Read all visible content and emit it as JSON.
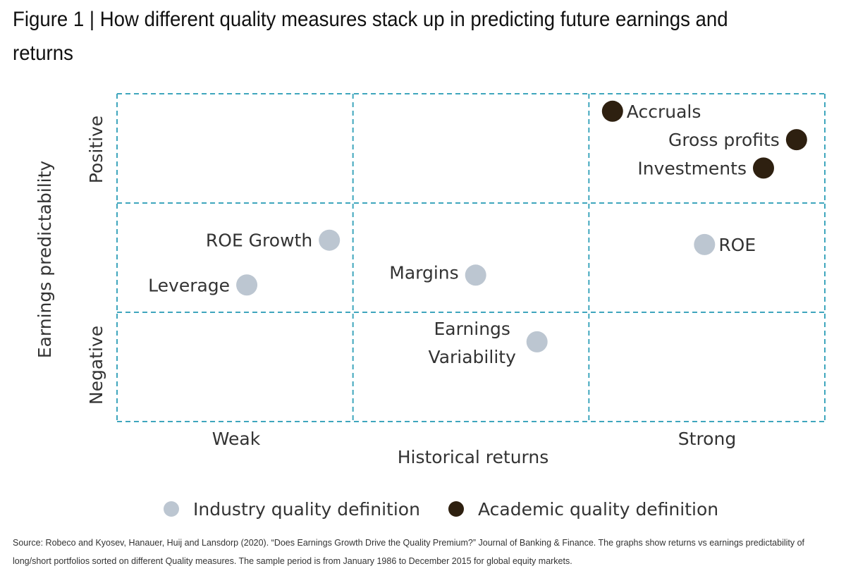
{
  "title": "Figure 1 | How different quality measures stack up in predicting future earnings and returns",
  "colors": {
    "grid": "#3fa6bd",
    "industry": "#bcc6d1",
    "academic": "#2e2010",
    "text": "#333333"
  },
  "chart_data": {
    "type": "scatter",
    "xlabel": "Historical returns",
    "ylabel": "Earnings predictability",
    "x_categories": [
      "Weak",
      "",
      "Strong"
    ],
    "y_categories": [
      "Negative",
      "",
      "Positive"
    ],
    "xlim": [
      0,
      3
    ],
    "ylim": [
      0,
      3
    ],
    "grid": true,
    "legend": "bottom",
    "series": [
      {
        "name": "Industry quality definition",
        "key": "industry",
        "points": [
          {
            "label": "ROE Growth",
            "x": 0.9,
            "y": 1.66
          },
          {
            "label": "Leverage",
            "x": 0.55,
            "y": 1.25
          },
          {
            "label": "Margins",
            "x": 1.52,
            "y": 1.34
          },
          {
            "label": "ROE",
            "x": 2.49,
            "y": 1.62
          },
          {
            "label": "Earnings Variability",
            "x": 1.78,
            "y": 0.73
          }
        ]
      },
      {
        "name": "Academic quality definition",
        "key": "academic",
        "points": [
          {
            "label": "Accruals",
            "x": 2.1,
            "y": 2.84
          },
          {
            "label": "Gross profits",
            "x": 2.88,
            "y": 2.58
          },
          {
            "label": "Investments",
            "x": 2.74,
            "y": 2.32
          }
        ]
      }
    ]
  },
  "source": "Source: Robeco and Kyosev, Hanauer, Huij and Lansdorp (2020). “Does Earnings Growth Drive the Quality Premium?” Journal of Banking & Finance. The graphs show returns vs earnings predictability of long/short portfolios sorted on different Quality measures. The sample period is from January 1986 to December 2015 for global equity markets."
}
